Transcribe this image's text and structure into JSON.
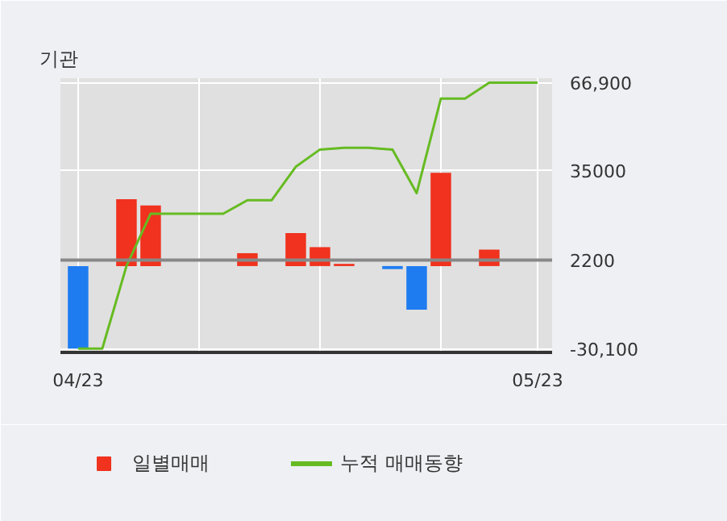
{
  "chart_data": {
    "type": "bar",
    "title": "기관",
    "categories": [
      "04/23",
      null,
      null,
      null,
      null,
      null,
      null,
      null,
      null,
      null,
      null,
      null,
      null,
      null,
      null,
      null,
      null,
      null,
      null,
      "05/23"
    ],
    "series": [
      {
        "name": "일별매매",
        "colors": [
          "#1f7cf0",
          "#f0321e",
          "#f0321e",
          "#f0321e",
          "#f0321e",
          "#f0321e",
          "#f0321e",
          "#f0321e",
          "#f0321e",
          "#f0321e",
          "#f0321e",
          "#f0321e",
          "#f0321e",
          "#1f7cf0",
          "#1f7cf0",
          "#f0321e",
          "#f0321e",
          "#f0321e",
          "#f0321e",
          "#f0321e"
        ],
        "values": [
          -30100,
          0,
          24400,
          22100,
          0,
          0,
          0,
          4700,
          0,
          12000,
          6900,
          800,
          0,
          -1100,
          -15900,
          34000,
          0,
          6000,
          0,
          0
        ]
      },
      {
        "name": "누적 매매동향",
        "type": "line",
        "color": "#66bb22",
        "values": [
          -30100,
          -30100,
          0,
          19100,
          19100,
          19100,
          19100,
          24000,
          24000,
          36200,
          42500,
          43100,
          43100,
          42500,
          26600,
          61100,
          61100,
          66900,
          66900,
          66900
        ]
      }
    ],
    "ylim": [
      -31500,
      68500
    ],
    "yticks": [
      {
        "value": 66900,
        "label": "66,900"
      },
      35000,
      2200,
      {
        "value": -30100,
        "label": "-30,100"
      }
    ],
    "ref_lines": [
      {
        "axis": "y",
        "value": 2200,
        "label": null,
        "color": "#888888"
      }
    ],
    "grid": true,
    "legend": "bottom"
  }
}
